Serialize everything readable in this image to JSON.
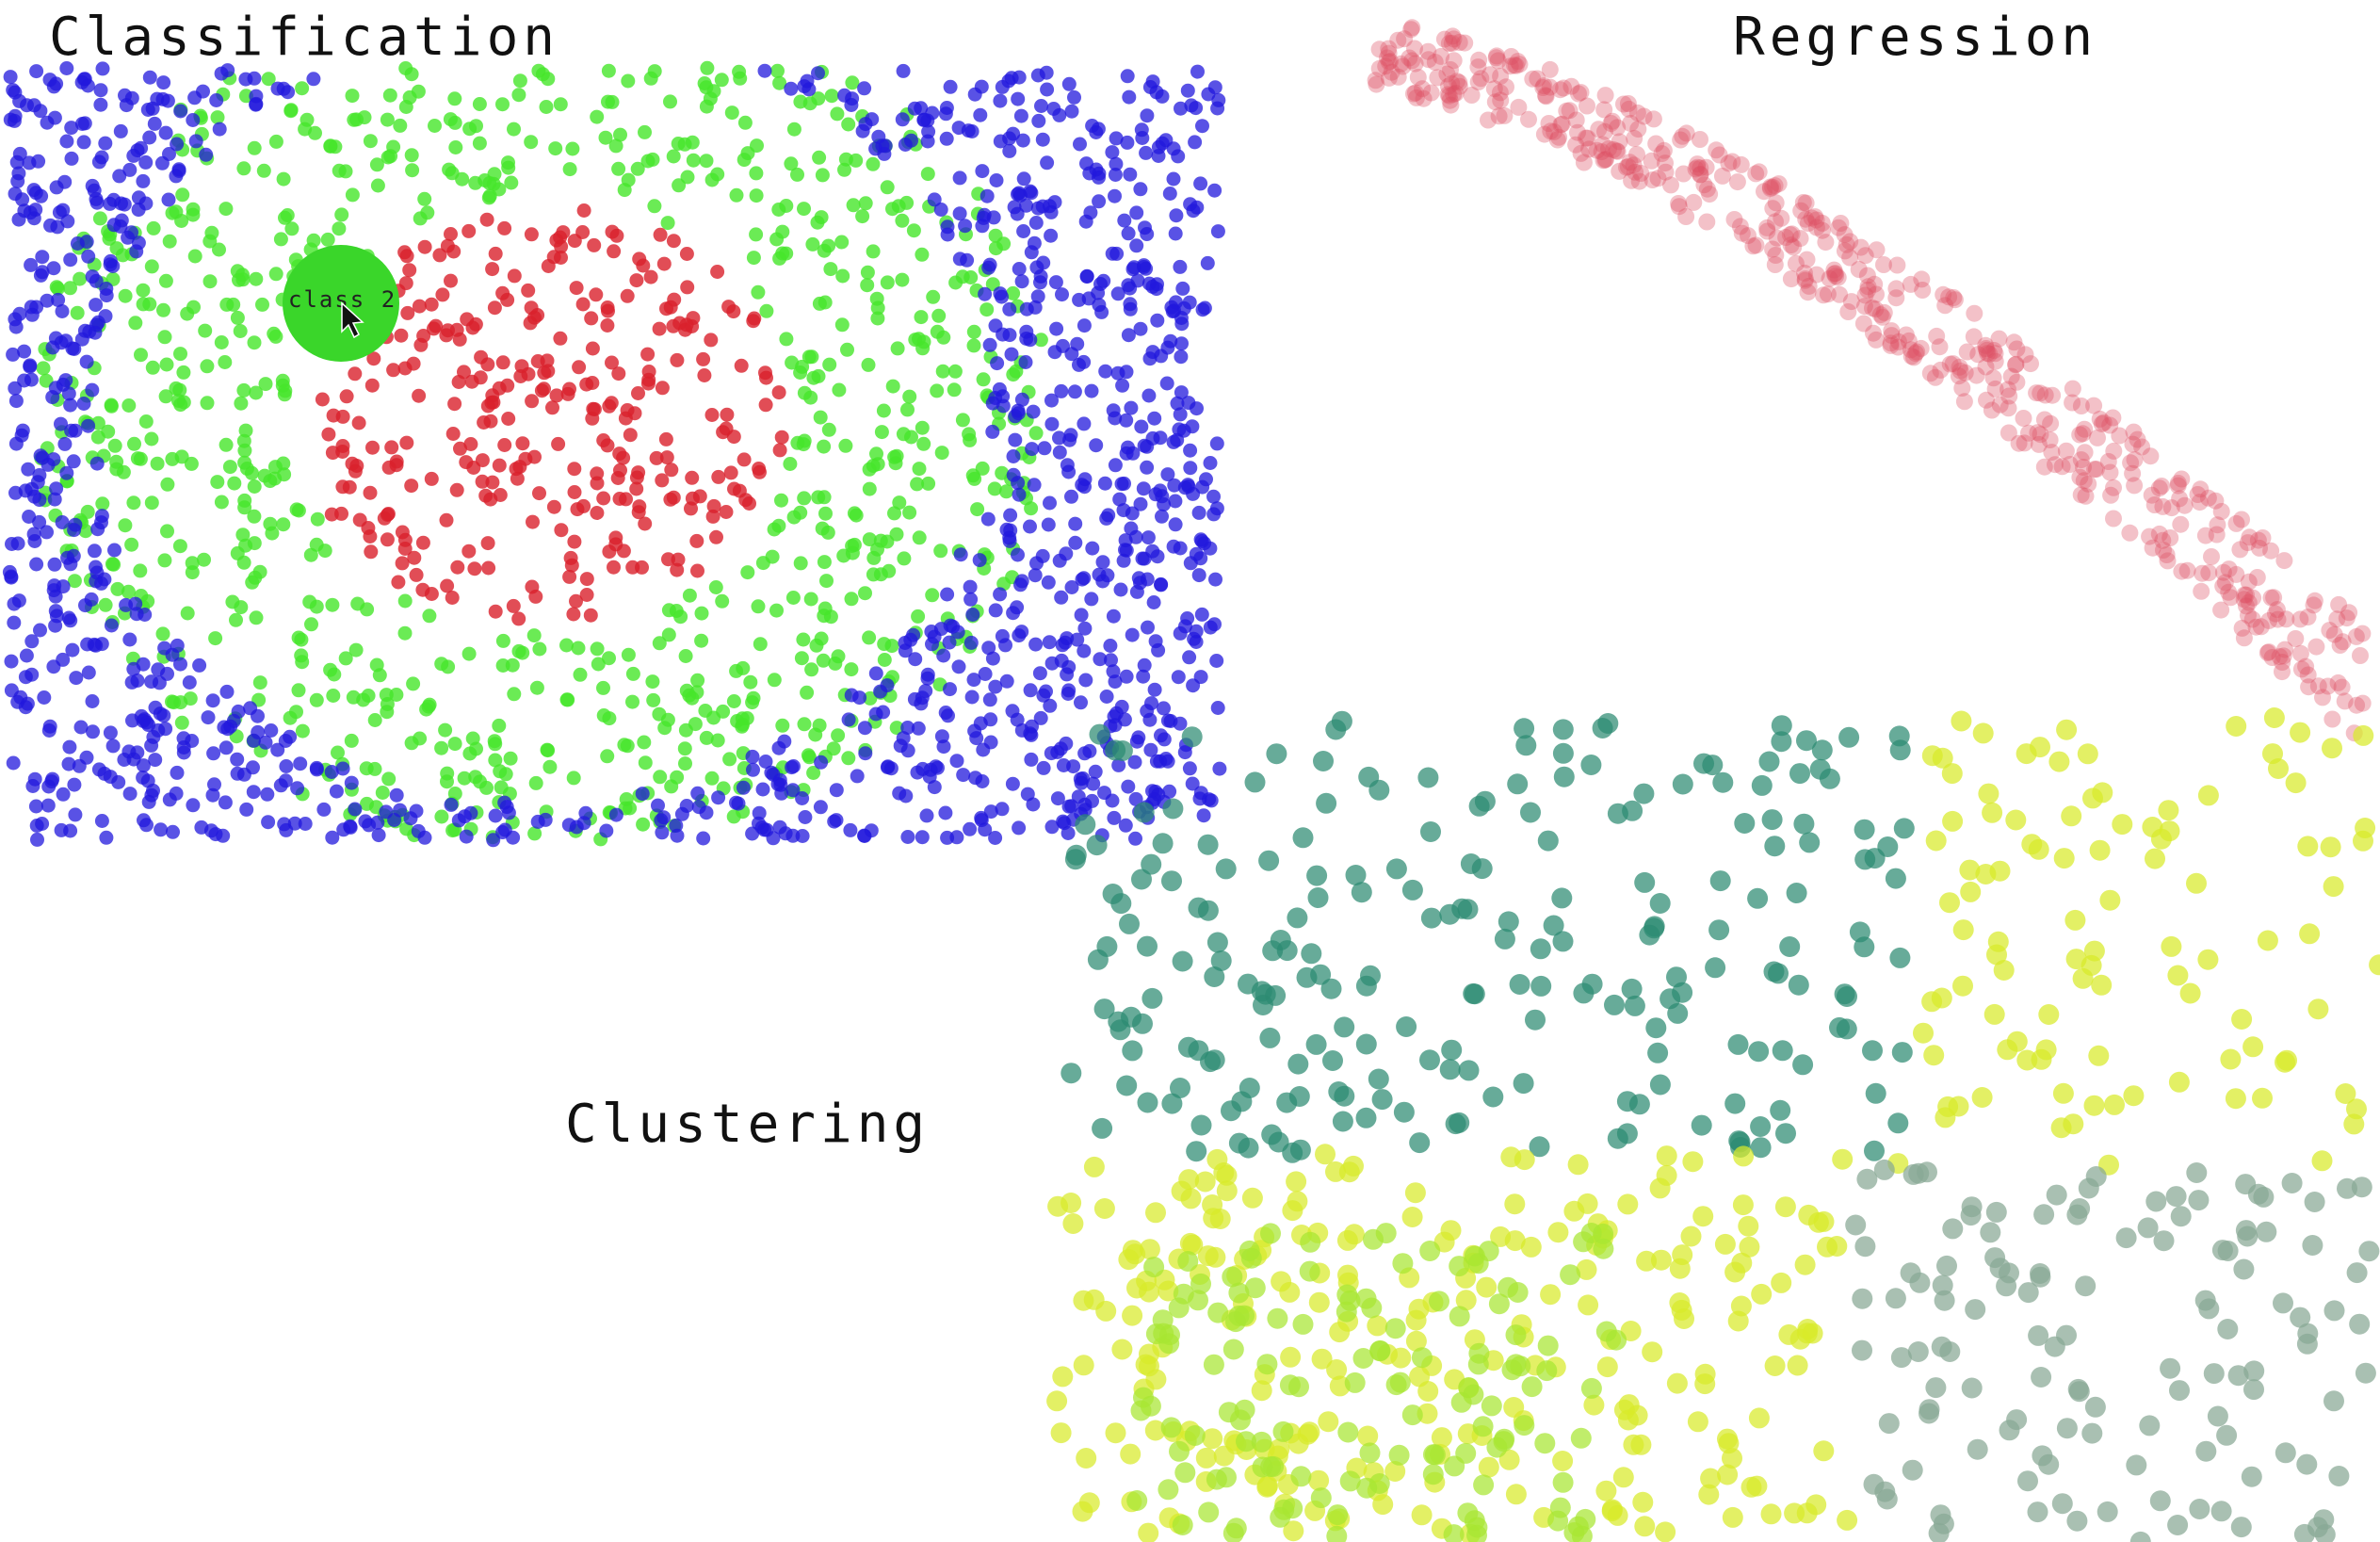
{
  "panels": {
    "classification": {
      "title": "Classification"
    },
    "regression": {
      "title": "Regression"
    },
    "clustering": {
      "title": "Clustering"
    }
  },
  "hover_tooltip": {
    "label": "class 2",
    "color": "#3ad62a"
  },
  "chart_data": [
    {
      "type": "scatter",
      "title": "Classification",
      "xlim": [
        0,
        1
      ],
      "ylim": [
        0,
        1
      ],
      "grid": false,
      "point_seed": 11,
      "series": [
        {
          "class": 0,
          "color": "#d9202c",
          "region": "inner-ellipse",
          "center": [
            0.44,
            0.45
          ],
          "radii": [
            0.2,
            0.27
          ],
          "count": 320
        },
        {
          "class": 1,
          "color": "#2218dc",
          "region": "outer-frame",
          "count": 1150
        },
        {
          "class": 2,
          "color": "#46e62a",
          "region": "middle-ring",
          "center": [
            0.44,
            0.45
          ],
          "count": 850
        }
      ]
    },
    {
      "type": "scatter",
      "title": "Regression",
      "xlim": [
        0,
        1
      ],
      "ylim": [
        0,
        1
      ],
      "grid": false,
      "point_seed": 23,
      "series": [
        {
          "color": "#de4e62",
          "shape": "concave-down curve, descending left to right",
          "count": 520
        }
      ]
    },
    {
      "type": "scatter",
      "title": "Clustering",
      "xlim": [
        0,
        1
      ],
      "ylim": [
        0,
        1
      ],
      "grid": false,
      "point_seed": 37,
      "series": [
        {
          "cluster": 0,
          "color": "#2c8a72",
          "count": 230
        },
        {
          "cluster": 1,
          "color": "#d8ea2a",
          "count": 370
        },
        {
          "cluster": 2,
          "color": "#a7e632",
          "count": 140
        },
        {
          "cluster": 3,
          "color": "#88a894",
          "count": 130
        }
      ]
    }
  ]
}
